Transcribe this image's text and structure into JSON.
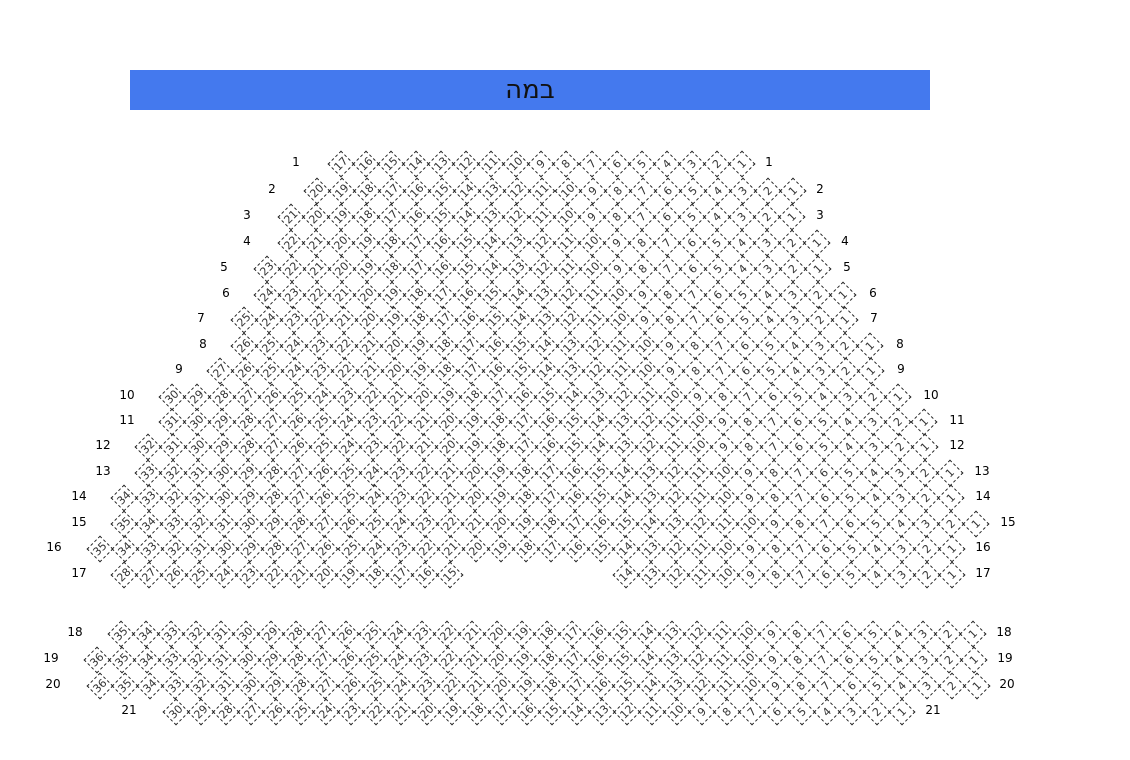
{
  "stage": {
    "label": "במה",
    "color": "#4479ee"
  },
  "rows": [
    {
      "label": "1",
      "seats": [
        17,
        16,
        15,
        14,
        13,
        12,
        11,
        10,
        9,
        8,
        7,
        6,
        5,
        4,
        3,
        2,
        1
      ]
    },
    {
      "label": "2",
      "seats": [
        20,
        19,
        18,
        17,
        16,
        15,
        14,
        13,
        12,
        11,
        10,
        9,
        8,
        7,
        6,
        5,
        4,
        3,
        2,
        1
      ]
    },
    {
      "label": "3",
      "seats": [
        21,
        20,
        19,
        18,
        17,
        16,
        15,
        14,
        13,
        12,
        11,
        10,
        9,
        8,
        7,
        6,
        5,
        4,
        3,
        2,
        1
      ]
    },
    {
      "label": "4",
      "seats": [
        22,
        21,
        20,
        19,
        18,
        17,
        16,
        15,
        14,
        13,
        12,
        11,
        10,
        9,
        8,
        7,
        6,
        5,
        4,
        3,
        2,
        1
      ]
    },
    {
      "label": "5",
      "seats": [
        23,
        22,
        21,
        20,
        19,
        18,
        17,
        16,
        15,
        14,
        13,
        12,
        11,
        10,
        9,
        8,
        7,
        6,
        5,
        4,
        3,
        2,
        1
      ]
    },
    {
      "label": "6",
      "seats": [
        24,
        23,
        22,
        21,
        20,
        19,
        18,
        17,
        16,
        15,
        14,
        13,
        12,
        11,
        10,
        9,
        8,
        7,
        6,
        5,
        4,
        3,
        2,
        1
      ]
    },
    {
      "label": "7",
      "seats": [
        25,
        24,
        23,
        22,
        21,
        20,
        19,
        18,
        17,
        16,
        15,
        14,
        13,
        12,
        11,
        10,
        9,
        8,
        7,
        6,
        5,
        4,
        3,
        2,
        1
      ]
    },
    {
      "label": "8",
      "seats": [
        26,
        25,
        24,
        23,
        22,
        21,
        20,
        19,
        18,
        17,
        16,
        15,
        14,
        13,
        12,
        11,
        10,
        9,
        8,
        7,
        6,
        5,
        4,
        3,
        2,
        1
      ]
    },
    {
      "label": "9",
      "seats": [
        27,
        26,
        25,
        24,
        23,
        22,
        21,
        20,
        19,
        18,
        17,
        16,
        15,
        14,
        13,
        12,
        11,
        10,
        9,
        8,
        7,
        6,
        5,
        4,
        3,
        2,
        1
      ]
    },
    {
      "label": "10",
      "seats": [
        30,
        29,
        28,
        27,
        26,
        25,
        24,
        23,
        22,
        21,
        20,
        19,
        18,
        17,
        16,
        15,
        14,
        13,
        12,
        11,
        10,
        9,
        8,
        7,
        6,
        5,
        4,
        3,
        2,
        1
      ]
    },
    {
      "label": "11",
      "seats": [
        31,
        30,
        29,
        28,
        27,
        26,
        25,
        24,
        23,
        22,
        21,
        20,
        19,
        18,
        17,
        16,
        15,
        14,
        13,
        12,
        11,
        10,
        9,
        8,
        7,
        6,
        5,
        4,
        3,
        2,
        1
      ]
    },
    {
      "label": "12",
      "seats": [
        32,
        31,
        30,
        29,
        28,
        27,
        26,
        25,
        24,
        23,
        22,
        21,
        20,
        19,
        18,
        17,
        16,
        15,
        14,
        13,
        12,
        11,
        10,
        9,
        8,
        7,
        6,
        5,
        4,
        3,
        2,
        1
      ]
    },
    {
      "label": "13",
      "seats": [
        33,
        32,
        31,
        30,
        29,
        28,
        27,
        26,
        25,
        24,
        23,
        22,
        21,
        20,
        19,
        18,
        17,
        16,
        15,
        14,
        13,
        12,
        11,
        10,
        9,
        8,
        7,
        6,
        5,
        4,
        3,
        2,
        1
      ]
    },
    {
      "label": "14",
      "seats": [
        34,
        33,
        32,
        31,
        30,
        29,
        28,
        27,
        26,
        25,
        24,
        23,
        22,
        21,
        20,
        19,
        18,
        17,
        16,
        15,
        14,
        13,
        12,
        11,
        10,
        9,
        8,
        7,
        6,
        5,
        4,
        3,
        2,
        1
      ]
    },
    {
      "label": "15",
      "seats": [
        35,
        34,
        33,
        32,
        31,
        30,
        29,
        28,
        27,
        26,
        25,
        24,
        23,
        22,
        21,
        20,
        19,
        18,
        17,
        16,
        15,
        14,
        13,
        12,
        11,
        10,
        9,
        8,
        7,
        6,
        5,
        4,
        3,
        2,
        1
      ]
    },
    {
      "label": "16",
      "seats": [
        35,
        34,
        33,
        32,
        31,
        30,
        29,
        28,
        27,
        26,
        25,
        24,
        23,
        22,
        21,
        20,
        19,
        18,
        17,
        16,
        15,
        14,
        13,
        12,
        11,
        10,
        9,
        8,
        7,
        6,
        5,
        4,
        3,
        2,
        1
      ]
    },
    {
      "label": "17",
      "seats": [
        28,
        27,
        26,
        25,
        24,
        23,
        22,
        21,
        20,
        19,
        18,
        17,
        16,
        15,
        14,
        13,
        12,
        11,
        10,
        9,
        8,
        7,
        6,
        5,
        4,
        3,
        2,
        1
      ]
    },
    {
      "label": "18",
      "seats": [
        35,
        34,
        33,
        32,
        31,
        30,
        29,
        28,
        27,
        26,
        25,
        24,
        23,
        22,
        21,
        20,
        19,
        18,
        17,
        16,
        15,
        14,
        13,
        12,
        11,
        10,
        9,
        8,
        7,
        6,
        5,
        4,
        3,
        2,
        1
      ]
    },
    {
      "label": "19",
      "seats": [
        36,
        35,
        34,
        33,
        32,
        31,
        30,
        29,
        28,
        27,
        26,
        25,
        24,
        23,
        22,
        21,
        20,
        19,
        18,
        17,
        16,
        15,
        14,
        13,
        12,
        11,
        10,
        9,
        8,
        7,
        6,
        5,
        4,
        3,
        2,
        1
      ]
    },
    {
      "label": "20",
      "seats": [
        36,
        35,
        34,
        33,
        32,
        31,
        30,
        29,
        28,
        27,
        26,
        25,
        24,
        23,
        22,
        21,
        20,
        19,
        18,
        17,
        16,
        15,
        14,
        13,
        12,
        11,
        10,
        9,
        8,
        7,
        6,
        5,
        4,
        3,
        2,
        1
      ]
    },
    {
      "label": "21",
      "seats": [
        30,
        29,
        28,
        27,
        26,
        25,
        24,
        23,
        22,
        21,
        20,
        19,
        18,
        17,
        16,
        15,
        14,
        13,
        12,
        11,
        10,
        9,
        8,
        7,
        6,
        5,
        4,
        3,
        2,
        1
      ]
    }
  ]
}
